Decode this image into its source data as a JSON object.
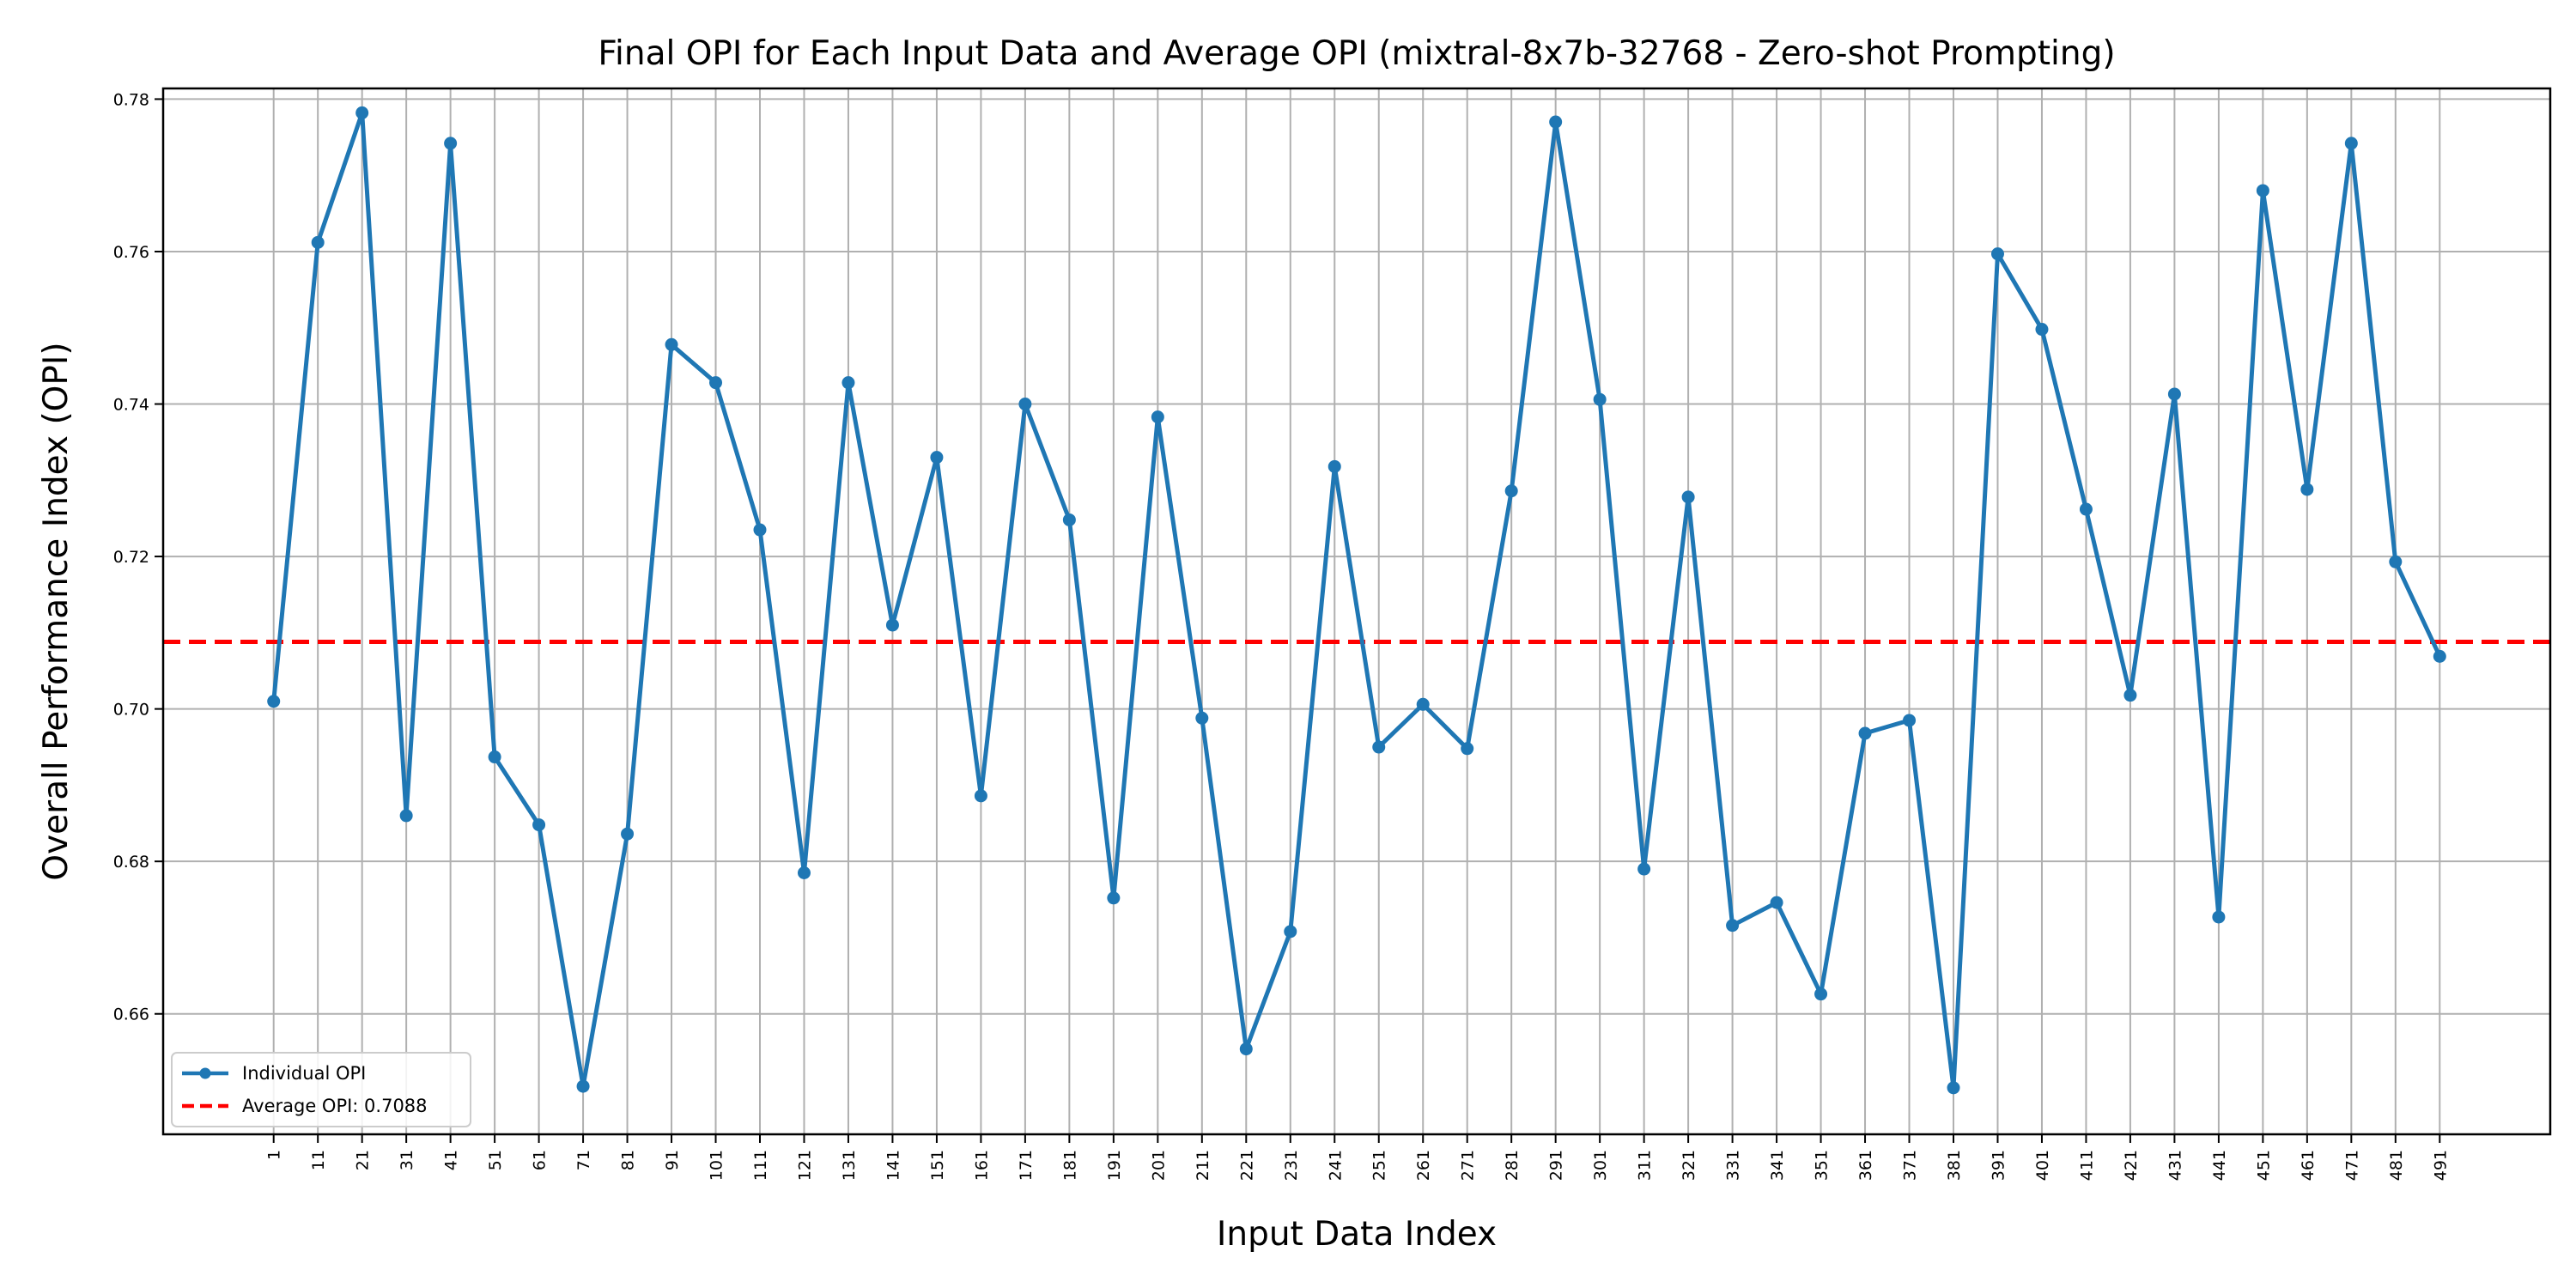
{
  "chart_data": {
    "type": "line",
    "title": "Final OPI for Each Input Data and Average OPI (mixtral-8x7b-32768 - Zero-shot Prompting)",
    "xlabel": "Input Data Index",
    "ylabel": "Overall Performance Index (OPI)",
    "x": [
      1,
      11,
      21,
      31,
      41,
      51,
      61,
      71,
      81,
      91,
      101,
      111,
      121,
      131,
      141,
      151,
      161,
      171,
      181,
      191,
      201,
      211,
      221,
      231,
      241,
      251,
      261,
      271,
      281,
      291,
      301,
      311,
      321,
      331,
      341,
      351,
      361,
      371,
      381,
      391,
      401,
      411,
      421,
      431,
      441,
      451,
      461,
      471,
      481,
      491
    ],
    "x_tick_labels": [
      "1",
      "11",
      "21",
      "31",
      "41",
      "51",
      "61",
      "71",
      "81",
      "91",
      "101",
      "111",
      "121",
      "131",
      "141",
      "151",
      "161",
      "171",
      "181",
      "191",
      "201",
      "211",
      "221",
      "231",
      "241",
      "251",
      "261",
      "271",
      "281",
      "291",
      "301",
      "311",
      "321",
      "331",
      "341",
      "351",
      "361",
      "371",
      "381",
      "391",
      "401",
      "411",
      "421",
      "431",
      "441",
      "451",
      "461",
      "471",
      "481",
      "491"
    ],
    "y_ticks": [
      0.66,
      0.68,
      0.7,
      0.72,
      0.74,
      0.76,
      0.78
    ],
    "y_tick_labels": [
      "0.66",
      "0.68",
      "0.70",
      "0.72",
      "0.74",
      "0.76",
      "0.78"
    ],
    "xlim": [
      -24,
      516
    ],
    "ylim": [
      0.6442,
      0.7814
    ],
    "grid": true,
    "legend_position": "lower-left",
    "series": [
      {
        "name": "Individual OPI",
        "color": "#1f77b4",
        "style": "solid-with-markers",
        "values": [
          0.701,
          0.7612,
          0.7782,
          0.686,
          0.7742,
          0.6937,
          0.6848,
          0.6505,
          0.6836,
          0.7478,
          0.7428,
          0.7235,
          0.6785,
          0.7428,
          0.711,
          0.733,
          0.6886,
          0.74,
          0.7248,
          0.6752,
          0.7383,
          0.6988,
          0.6554,
          0.6708,
          0.7318,
          0.695,
          0.7006,
          0.6948,
          0.7286,
          0.777,
          0.7406,
          0.679,
          0.7278,
          0.6716,
          0.6746,
          0.6626,
          0.6968,
          0.6985,
          0.6503,
          0.7597,
          0.7498,
          0.7262,
          0.7018,
          0.7413,
          0.6727,
          0.768,
          0.7288,
          0.7742,
          0.7193,
          0.7069
        ]
      },
      {
        "name": "Average OPI: 0.7088",
        "color": "#ff0000",
        "style": "dashed",
        "value": 0.7088
      }
    ]
  }
}
